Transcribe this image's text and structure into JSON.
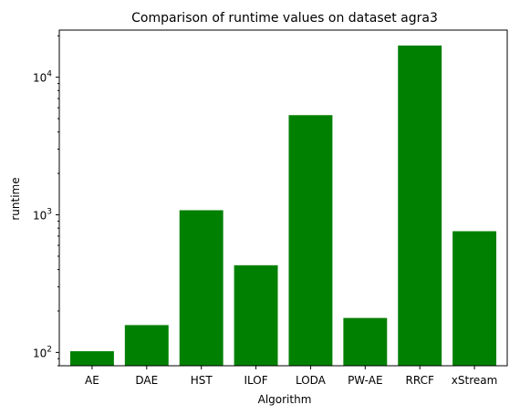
{
  "chart_data": {
    "type": "bar",
    "title": "Comparison of runtime values on dataset agra3",
    "xlabel": "Algorithm",
    "ylabel": "runtime",
    "yscale": "log",
    "ylim": [
      80,
      22000
    ],
    "grid": false,
    "categories": [
      "AE",
      "DAE",
      "HST",
      "ILOF",
      "LODA",
      "PW-AE",
      "RRCF",
      "xStream"
    ],
    "values": [
      102,
      158,
      1080,
      430,
      5300,
      178,
      17000,
      760
    ],
    "yticks": [
      {
        "value": 100,
        "base": "10",
        "exp": "2"
      },
      {
        "value": 1000,
        "base": "10",
        "exp": "3"
      },
      {
        "value": 10000,
        "base": "10",
        "exp": "4"
      }
    ],
    "colors": {
      "bar": "#008000",
      "axis": "#000000"
    }
  }
}
